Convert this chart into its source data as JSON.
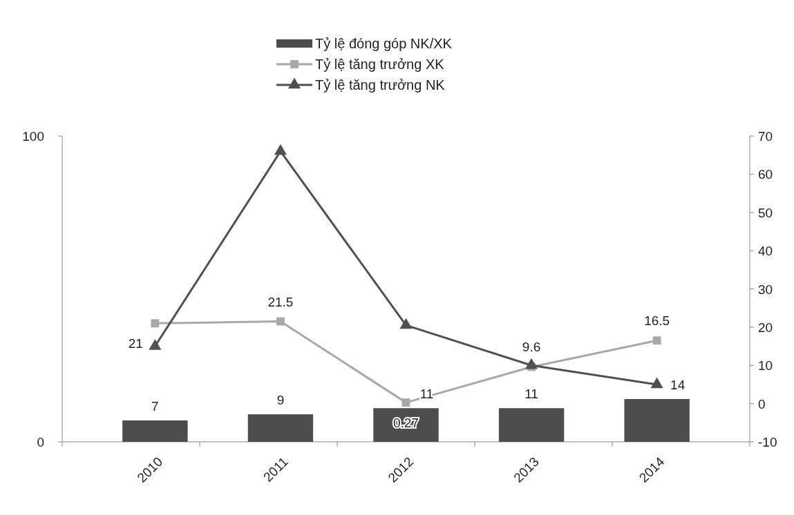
{
  "chart_data": {
    "type": "bar",
    "categories": [
      "2010",
      "2011",
      "2012",
      "2013",
      "2014"
    ],
    "ylim": [
      0,
      100
    ],
    "yticks": [
      0,
      100
    ],
    "y2lim": [
      -10,
      70
    ],
    "y2ticks": [
      -10,
      0,
      10,
      20,
      30,
      40,
      50,
      60,
      70
    ],
    "legend": "top",
    "grid": false,
    "series": [
      {
        "name": "Tỷ lệ đóng góp NK/XK",
        "color": "#4d4d4d",
        "values": [
          7,
          9,
          11,
          11,
          14
        ],
        "value_labels": [
          "7",
          "9",
          "11",
          "11",
          "14"
        ]
      },
      {
        "name": "Tỷ lệ tăng trưởng XK",
        "type": "line",
        "axis": "y2",
        "marker": "square",
        "color": "#a8a8a8",
        "values": [
          21,
          21.5,
          0.27,
          9.6,
          16.5
        ],
        "value_labels": [
          "21",
          "21.5",
          "0.27",
          "9.6",
          "16.5"
        ]
      },
      {
        "name": "Tỷ lệ tăng trưởng NK",
        "type": "line",
        "axis": "y2",
        "marker": "triangle",
        "color": "#505050",
        "values": [
          15,
          66,
          20.5,
          10,
          5
        ]
      }
    ]
  }
}
